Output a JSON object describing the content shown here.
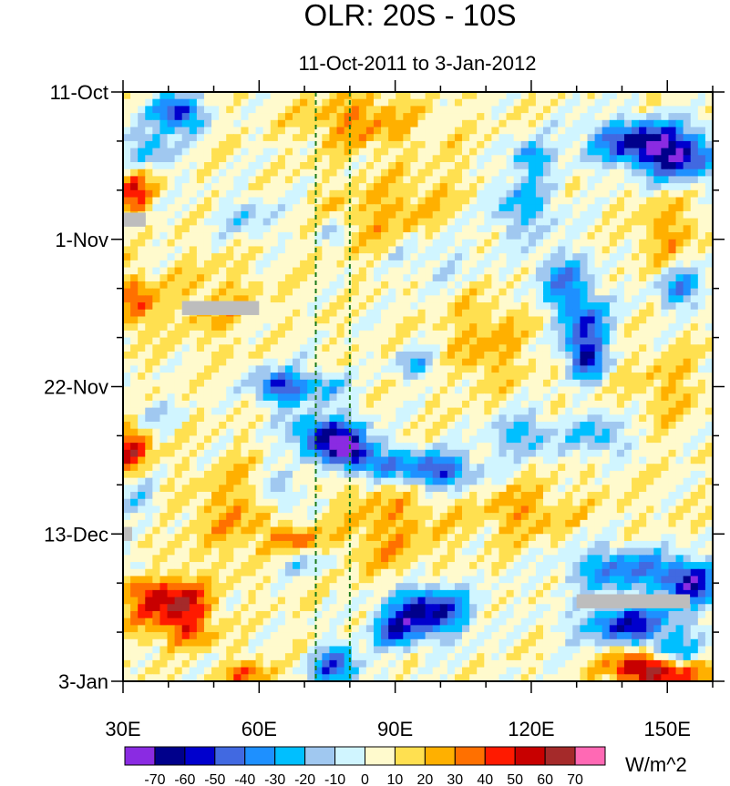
{
  "chart_data": {
    "type": "heatmap",
    "title": "OLR: 20S - 10S",
    "subtitle": "11-Oct-2011 to 3-Jan-2012",
    "xlabel": "",
    "ylabel": "",
    "x_range": [
      30,
      160
    ],
    "x_ticks": [
      {
        "value": 30,
        "label": "30E"
      },
      {
        "value": 60,
        "label": "60E"
      },
      {
        "value": 90,
        "label": "90E"
      },
      {
        "value": 120,
        "label": "120E"
      },
      {
        "value": 150,
        "label": "150E"
      }
    ],
    "y_range_days": [
      0,
      84
    ],
    "y_ticks": [
      {
        "value": 0,
        "label": "11-Oct"
      },
      {
        "value": 21,
        "label": "1-Nov"
      },
      {
        "value": 42,
        "label": "22-Nov"
      },
      {
        "value": 63,
        "label": "13-Dec"
      },
      {
        "value": 84,
        "label": "3-Jan"
      }
    ],
    "reference_lines_lon": [
      72.5,
      80
    ],
    "colorbar": {
      "units": "W/m^2",
      "levels": [
        -70,
        -60,
        -50,
        -40,
        -30,
        -20,
        -10,
        0,
        10,
        20,
        30,
        40,
        50,
        60,
        70
      ],
      "level_labels": [
        "-70",
        "-60",
        "-50",
        "-40",
        "-30",
        "-20",
        "-10",
        "0",
        "10",
        "20",
        "30",
        "40",
        "50",
        "60",
        "70"
      ],
      "colors": [
        "#8a2be2",
        "#00008b",
        "#0000cd",
        "#4169e1",
        "#1e90ff",
        "#00bfff",
        "#a0c8f0",
        "#d0f5ff",
        "#fffacd",
        "#ffe050",
        "#ffb000",
        "#ff7000",
        "#ff1a00",
        "#c80000",
        "#a52a2a",
        "#ff69b4"
      ]
    },
    "anomaly_blobs": [
      {
        "lon": 42,
        "day": 3,
        "rx": 5,
        "ry": 2.5,
        "v": -65
      },
      {
        "lon": 36,
        "day": 8,
        "rx": 6,
        "ry": 3,
        "v": -30
      },
      {
        "lon": 145,
        "day": 7,
        "rx": 12,
        "ry": 3,
        "v": -65
      },
      {
        "lon": 152,
        "day": 10,
        "rx": 9,
        "ry": 3,
        "v": -50
      },
      {
        "lon": 120,
        "day": 9,
        "rx": 4,
        "ry": 2,
        "v": -40
      },
      {
        "lon": 118,
        "day": 16,
        "rx": 8,
        "ry": 5,
        "v": -30
      },
      {
        "lon": 58,
        "day": 18,
        "rx": 7,
        "ry": 3,
        "v": -20
      },
      {
        "lon": 76,
        "day": 20,
        "rx": 3,
        "ry": 2,
        "v": -20
      },
      {
        "lon": 97,
        "day": 23,
        "rx": 10,
        "ry": 4,
        "v": -20
      },
      {
        "lon": 127,
        "day": 27,
        "rx": 6,
        "ry": 4,
        "v": -40
      },
      {
        "lon": 132,
        "day": 33,
        "rx": 5,
        "ry": 4,
        "v": -50
      },
      {
        "lon": 132,
        "day": 38,
        "rx": 4,
        "ry": 3,
        "v": -55
      },
      {
        "lon": 153,
        "day": 28,
        "rx": 5,
        "ry": 3,
        "v": -40
      },
      {
        "lon": 65,
        "day": 42,
        "rx": 6,
        "ry": 2.5,
        "v": -60
      },
      {
        "lon": 75,
        "day": 42,
        "rx": 4,
        "ry": 2,
        "v": -30
      },
      {
        "lon": 95,
        "day": 39,
        "rx": 5,
        "ry": 2,
        "v": -30
      },
      {
        "lon": 36,
        "day": 46,
        "rx": 5,
        "ry": 2,
        "v": -20
      },
      {
        "lon": 75,
        "day": 49,
        "rx": 8,
        "ry": 3,
        "v": -65
      },
      {
        "lon": 80,
        "day": 51,
        "rx": 4,
        "ry": 2,
        "v": -55
      },
      {
        "lon": 86,
        "day": 53,
        "rx": 9,
        "ry": 2.5,
        "v": -40
      },
      {
        "lon": 100,
        "day": 54,
        "rx": 8,
        "ry": 2.5,
        "v": -55
      },
      {
        "lon": 118,
        "day": 49,
        "rx": 8,
        "ry": 3,
        "v": -30
      },
      {
        "lon": 135,
        "day": 49,
        "rx": 6,
        "ry": 3,
        "v": -30
      },
      {
        "lon": 65,
        "day": 57,
        "rx": 4,
        "ry": 3,
        "v": -30
      },
      {
        "lon": 140,
        "day": 68,
        "rx": 12,
        "ry": 3,
        "v": -45
      },
      {
        "lon": 155,
        "day": 70,
        "rx": 6,
        "ry": 3,
        "v": -65
      },
      {
        "lon": 142,
        "day": 76,
        "rx": 11,
        "ry": 3,
        "v": -60
      },
      {
        "lon": 150,
        "day": 80,
        "rx": 8,
        "ry": 2,
        "v": -40
      },
      {
        "lon": 97,
        "day": 74,
        "rx": 9,
        "ry": 3.5,
        "v": -70
      },
      {
        "lon": 90,
        "day": 77,
        "rx": 5,
        "ry": 2.5,
        "v": -40
      },
      {
        "lon": 77,
        "day": 82,
        "rx": 5,
        "ry": 3,
        "v": -55
      },
      {
        "lon": 34,
        "day": 58,
        "rx": 4,
        "ry": 3,
        "v": -20
      },
      {
        "lon": 35,
        "day": 68,
        "rx": 4,
        "ry": 2,
        "v": -30
      },
      {
        "lon": 70,
        "day": 67,
        "rx": 8,
        "ry": 2,
        "v": -20
      },
      {
        "lon": 32,
        "day": 14,
        "rx": 4,
        "ry": 3,
        "v": 45
      },
      {
        "lon": 33,
        "day": 30,
        "rx": 4,
        "ry": 4,
        "v": 35
      },
      {
        "lon": 32,
        "day": 51,
        "rx": 4,
        "ry": 3,
        "v": 50
      },
      {
        "lon": 36,
        "day": 72,
        "rx": 6,
        "ry": 5,
        "v": 40
      },
      {
        "lon": 44,
        "day": 73,
        "rx": 6,
        "ry": 3,
        "v": 45
      },
      {
        "lon": 45,
        "day": 77,
        "rx": 5,
        "ry": 2,
        "v": 30
      },
      {
        "lon": 57,
        "day": 83,
        "rx": 6,
        "ry": 2,
        "v": 30
      },
      {
        "lon": 144,
        "day": 81,
        "rx": 8,
        "ry": 2.5,
        "v": 50
      },
      {
        "lon": 150,
        "day": 83,
        "rx": 10,
        "ry": 2,
        "v": 40
      },
      {
        "lon": 68,
        "day": 64,
        "rx": 5,
        "ry": 2,
        "v": 30
      },
      {
        "lon": 82,
        "day": 4,
        "rx": 12,
        "ry": 4,
        "v": 25
      },
      {
        "lon": 90,
        "day": 18,
        "rx": 14,
        "ry": 6,
        "v": 20
      },
      {
        "lon": 110,
        "day": 36,
        "rx": 9,
        "ry": 6,
        "v": 20
      },
      {
        "lon": 88,
        "day": 62,
        "rx": 12,
        "ry": 8,
        "v": 20
      },
      {
        "lon": 50,
        "day": 30,
        "rx": 10,
        "ry": 6,
        "v": 15
      },
      {
        "lon": 55,
        "day": 60,
        "rx": 10,
        "ry": 7,
        "v": 20
      },
      {
        "lon": 150,
        "day": 20,
        "rx": 7,
        "ry": 5,
        "v": 20
      },
      {
        "lon": 150,
        "day": 42,
        "rx": 8,
        "ry": 5,
        "v": 15
      },
      {
        "lon": 118,
        "day": 60,
        "rx": 10,
        "ry": 4,
        "v": 20
      },
      {
        "lon": 106,
        "day": 11,
        "rx": 10,
        "ry": 5,
        "v": 5
      },
      {
        "lon": 140,
        "day": 58,
        "rx": 10,
        "ry": 3,
        "v": 5
      }
    ],
    "missing_boxes": [
      {
        "lon0": 30,
        "lon1": 35,
        "day0": 17.2,
        "day1": 19.2
      },
      {
        "lon0": 43,
        "lon1": 60,
        "day0": 29.8,
        "day1": 31.8
      },
      {
        "lon0": 30,
        "lon1": 32,
        "day0": 62,
        "day1": 64
      },
      {
        "lon0": 130,
        "lon1": 155,
        "day0": 71.6,
        "day1": 73.6
      }
    ]
  }
}
